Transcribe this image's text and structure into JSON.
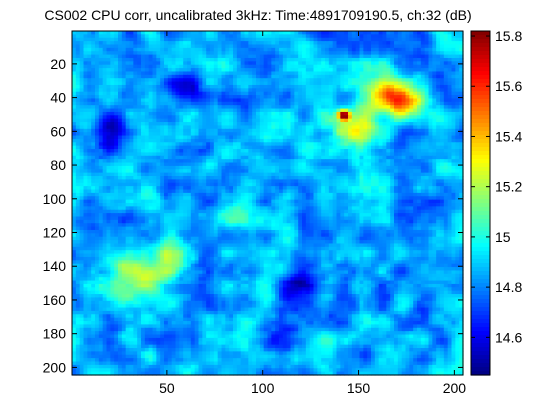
{
  "chart_data": {
    "type": "heatmap",
    "title": "CS002 CPU corr, uncalibrated 3kHz: Time:4891709190.5, ch:32 (dB)",
    "xlabel": "",
    "ylabel": "",
    "x_range": [
      1,
      204
    ],
    "y_range": [
      1,
      204
    ],
    "y_reversed": true,
    "x_ticks": [
      50,
      100,
      150,
      200
    ],
    "y_ticks": [
      20,
      40,
      60,
      80,
      100,
      120,
      140,
      160,
      180,
      200
    ],
    "colormap": "jet",
    "color_range": [
      14.45,
      15.82
    ],
    "colorbar_ticks": [
      14.6,
      14.8,
      15,
      15.2,
      15.4,
      15.6,
      15.8
    ],
    "colorbar_position": "right",
    "background_level": 14.85,
    "features": [
      {
        "x": 143,
        "y": 51,
        "value": 15.8
      },
      {
        "x": 174,
        "y": 43,
        "value": 15.45
      },
      {
        "x": 165,
        "y": 35,
        "value": 15.25
      },
      {
        "x": 150,
        "y": 60,
        "value": 15.2
      },
      {
        "x": 160,
        "y": 45,
        "value": 15.15
      },
      {
        "x": 135,
        "y": 55,
        "value": 15.05
      },
      {
        "x": 28,
        "y": 140,
        "value": 15.15
      },
      {
        "x": 52,
        "y": 135,
        "value": 15.15
      },
      {
        "x": 40,
        "y": 147,
        "value": 15.1
      },
      {
        "x": 30,
        "y": 160,
        "value": 15.05
      },
      {
        "x": 90,
        "y": 110,
        "value": 15.0
      },
      {
        "x": 100,
        "y": 75,
        "value": 14.95
      },
      {
        "x": 60,
        "y": 35,
        "value": 14.5
      },
      {
        "x": 20,
        "y": 60,
        "value": 14.5
      },
      {
        "x": 120,
        "y": 150,
        "value": 14.5
      },
      {
        "x": 110,
        "y": 185,
        "value": 14.55
      }
    ]
  }
}
